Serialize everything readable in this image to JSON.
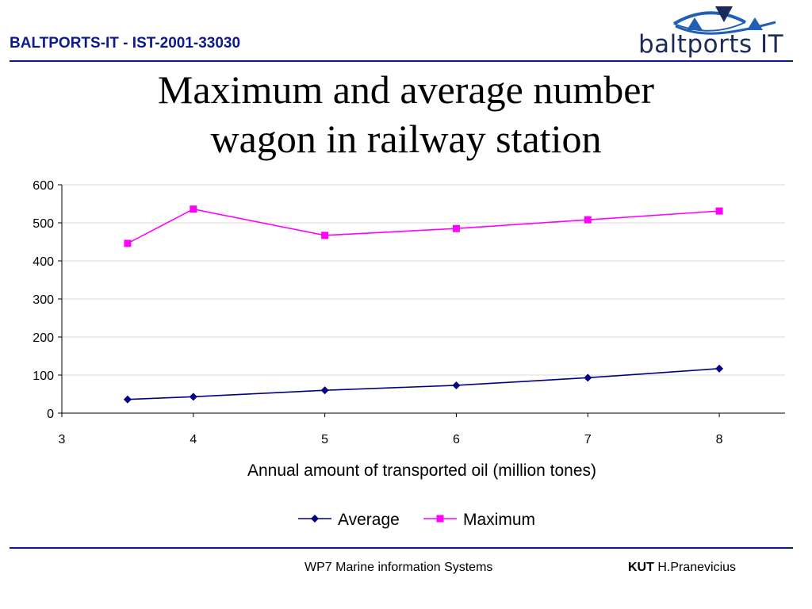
{
  "header": {
    "project": "BALTPORTS-IT - IST-2001-33030",
    "logo_text": "baltports IT"
  },
  "footer": {
    "workpackage": "WP7 Marine information Systems",
    "org": "KUT",
    "author": "H.Pranevicius"
  },
  "chart_data": {
    "type": "line",
    "title": "Maximum and average number wagon in railway station",
    "title_lines": [
      "Maximum and average number",
      "wagon in railway station"
    ],
    "xlabel": "Annual amount of transported oil (million tones)",
    "ylabel": "",
    "xlim": [
      3,
      8.5
    ],
    "ylim": [
      0,
      600
    ],
    "xticks": [
      3,
      4,
      5,
      6,
      7,
      8
    ],
    "yticks": [
      0,
      100,
      200,
      300,
      400,
      500,
      600
    ],
    "grid": true,
    "legend": "bottom",
    "series": [
      {
        "name": "Average",
        "color": "#000080",
        "marker": "diamond",
        "x": [
          3.5,
          4,
          5,
          6,
          7,
          8
        ],
        "y": [
          36,
          43,
          60,
          73,
          93,
          117
        ]
      },
      {
        "name": "Maximum",
        "color": "#ff00ff",
        "marker": "square",
        "x": [
          3.5,
          4,
          5,
          6,
          7,
          8
        ],
        "y": [
          446,
          536,
          467,
          485,
          508,
          531
        ]
      }
    ]
  }
}
